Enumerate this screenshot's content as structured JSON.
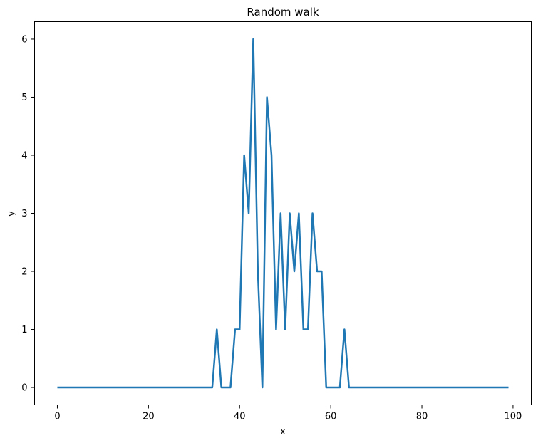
{
  "chart_data": {
    "type": "line",
    "title": "Random walk",
    "xlabel": "x",
    "ylabel": "y",
    "xlim": [
      -5,
      104
    ],
    "ylim": [
      -0.3,
      6.3
    ],
    "grid": false,
    "legend": false,
    "line_color": "#1f77b4",
    "xticks": [
      0,
      20,
      40,
      60,
      80,
      100
    ],
    "yticks": [
      0,
      1,
      2,
      3,
      4,
      5,
      6
    ],
    "series": [
      {
        "x": [
          0,
          1,
          2,
          3,
          4,
          5,
          6,
          7,
          8,
          9,
          10,
          11,
          12,
          13,
          14,
          15,
          16,
          17,
          18,
          19,
          20,
          21,
          22,
          23,
          24,
          25,
          26,
          27,
          28,
          29,
          30,
          31,
          32,
          33,
          34,
          35,
          36,
          37,
          38,
          39,
          40,
          41,
          42,
          43,
          44,
          45,
          46,
          47,
          48,
          49,
          50,
          51,
          52,
          53,
          54,
          55,
          56,
          57,
          58,
          59,
          60,
          61,
          62,
          63,
          64,
          65,
          66,
          67,
          68,
          69,
          70,
          71,
          72,
          73,
          74,
          75,
          76,
          77,
          78,
          79,
          80,
          81,
          82,
          83,
          84,
          85,
          86,
          87,
          88,
          89,
          90,
          91,
          92,
          93,
          94,
          95,
          96,
          97,
          98,
          99
        ],
        "y": [
          0,
          0,
          0,
          0,
          0,
          0,
          0,
          0,
          0,
          0,
          0,
          0,
          0,
          0,
          0,
          0,
          0,
          0,
          0,
          0,
          0,
          0,
          0,
          0,
          0,
          0,
          0,
          0,
          0,
          0,
          0,
          0,
          0,
          0,
          0,
          1,
          0,
          0,
          0,
          1,
          1,
          4,
          3,
          6,
          2,
          0,
          5,
          4,
          1,
          3,
          1,
          3,
          2,
          3,
          1,
          1,
          3,
          2,
          2,
          0,
          0,
          0,
          0,
          1,
          0,
          0,
          0,
          0,
          0,
          0,
          0,
          0,
          0,
          0,
          0,
          0,
          0,
          0,
          0,
          0,
          0,
          0,
          0,
          0,
          0,
          0,
          0,
          0,
          0,
          0,
          0,
          0,
          0,
          0,
          0,
          0,
          0,
          0,
          0,
          0
        ]
      }
    ]
  }
}
